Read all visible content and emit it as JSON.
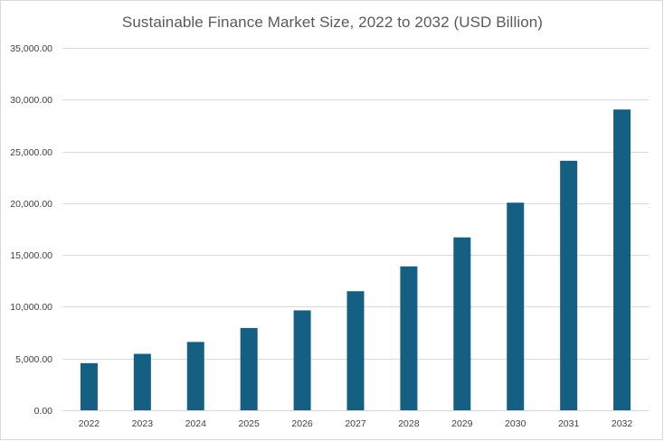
{
  "chart_data": {
    "type": "bar",
    "title": "Sustainable Finance Market Size, 2022 to 2032 (USD Billion)",
    "xlabel": "",
    "ylabel": "",
    "categories": [
      "2022",
      "2023",
      "2024",
      "2025",
      "2026",
      "2027",
      "2028",
      "2029",
      "2030",
      "2031",
      "2032"
    ],
    "values": [
      4550,
      5450,
      6600,
      7950,
      9650,
      11500,
      13900,
      16700,
      20050,
      24100,
      29050
    ],
    "ylim": [
      0,
      35000
    ],
    "yticks": [
      {
        "value": 0,
        "label": "0.00"
      },
      {
        "value": 5000,
        "label": "5,000.00"
      },
      {
        "value": 10000,
        "label": "10,000.00"
      },
      {
        "value": 15000,
        "label": "15,000.00"
      },
      {
        "value": 20000,
        "label": "20,000.00"
      },
      {
        "value": 25000,
        "label": "25,000.00"
      },
      {
        "value": 30000,
        "label": "30,000.00"
      },
      {
        "value": 35000,
        "label": "35,000.00"
      }
    ],
    "grid": true,
    "legend": "none",
    "colors": {
      "bar": "#156082",
      "grid": "#d9d9d9",
      "text": "#404040",
      "title": "#595959"
    }
  }
}
